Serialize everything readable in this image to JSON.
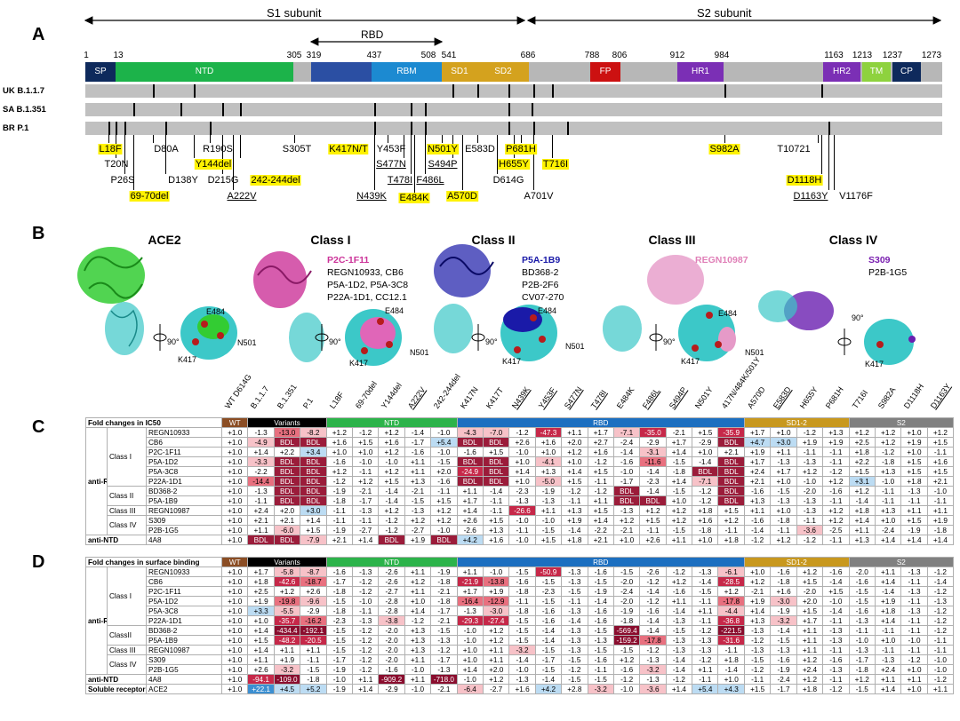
{
  "panel_a": {
    "letter": "A",
    "s1_label": "S1 subunit",
    "s2_label": "S2 subunit",
    "rbd_label": "RBD",
    "positions": [
      "1",
      "13",
      "305",
      "319",
      "437",
      "508",
      "541",
      "686",
      "788",
      "806",
      "912",
      "984",
      "1163",
      "1213",
      "1237",
      "1273"
    ],
    "domains": [
      {
        "label": "SP",
        "color": "#0e2a5c"
      },
      {
        "label": "NTD",
        "color": "#1cb34a"
      },
      {
        "label": "",
        "color": "#2b4fa3"
      },
      {
        "label": "RBM",
        "color": "#1c8ad1"
      },
      {
        "label": "SD1",
        "color": "#d4a21e"
      },
      {
        "label": "SD2",
        "color": "#d4a21e"
      },
      {
        "label": "FP",
        "color": "#cc1111"
      },
      {
        "label": "HR1",
        "color": "#7b2fb5"
      },
      {
        "label": "HR2",
        "color": "#7b2fb5"
      },
      {
        "label": "TM",
        "color": "#8ed23e"
      },
      {
        "label": "CP",
        "color": "#0e2a5c"
      }
    ],
    "strains": [
      "UK B.1.1.7",
      "SA B.1.351",
      "BR P.1"
    ],
    "mutations": [
      "L18F",
      "T20N",
      "P26S",
      "69-70del",
      "D80A",
      "D138Y",
      "Y144del",
      "R190S",
      "D215G",
      "A222V",
      "242-244del",
      "S305T",
      "K417N/T",
      "N439K",
      "Y453F",
      "S477N",
      "T478I",
      "E484K",
      "F486L",
      "N501Y",
      "S494P",
      "A570D",
      "E583D",
      "D614G",
      "H655Y",
      "P681H",
      "A701V",
      "T716I",
      "S982A",
      "T10721",
      "D1118H",
      "D1163Y",
      "V1176F"
    ]
  },
  "panel_b": {
    "letter": "B",
    "classes": [
      "ACE2",
      "Class I",
      "Class II",
      "Class III",
      "Class IV"
    ],
    "class_i_antibodies": [
      "P2C-1F11",
      "REGN10933, CB6",
      "P5A-1D2, P5A-3C8",
      "P22A-1D1, CC12.1"
    ],
    "class_ii_antibodies": [
      "P5A-1B9",
      "BD368-2",
      "P2B-2F6",
      "CV07-270"
    ],
    "class_iii_antibodies": [
      "REGN10987"
    ],
    "class_iv_antibodies": [
      "S309",
      "P2B-1G5"
    ],
    "residues": [
      "E484",
      "N501",
      "K417"
    ],
    "rotation_label": "90°",
    "colors": {
      "ace2": "#33cc33",
      "class_i": "#cc3399",
      "class_ii": "#1a1aa8",
      "class_iii": "#e69ac8",
      "class_iv": "#6a1fb0",
      "rbd": "#3cc8c8"
    }
  },
  "columns": [
    "WT D614G",
    "B.1.1.7",
    "B.1.351",
    "P.1",
    "L18F",
    "69-70del",
    "Y144del",
    "A222V",
    "242-244del",
    "K417N",
    "K417T",
    "N439K",
    "Y453F",
    "S477N",
    "T478I",
    "E484K",
    "F486L",
    "S494P",
    "N501Y",
    "417N/484K/501Y",
    "A570D",
    "E583D",
    "H655Y",
    "P681H",
    "T716I",
    "S982A",
    "D1118H",
    "D1163Y"
  ],
  "panel_c": {
    "letter": "C",
    "title": "Fold changes in IC50",
    "groups": [
      "WT",
      "Variants",
      "NTD",
      "RBD",
      "SD1-2",
      "S2"
    ],
    "row_groups": [
      "anti-RBD",
      "anti-NTD"
    ],
    "classes": [
      "Class I",
      "Class II",
      "Class III",
      "Class IV"
    ],
    "rows": [
      {
        "name": "REGN10933",
        "v": [
          "+1.0",
          "-1.3",
          "-13.0",
          "-8.2",
          "+1.2",
          "-1.2",
          "+1.2",
          "-1.4",
          "-1.0",
          "-4.3",
          "-7.0",
          "-1.2",
          "-47.3",
          "+1.1",
          "+1.7",
          "-7.1",
          "-35.0",
          "-2.1",
          "+1.5",
          "-35.9",
          "+1.7",
          "+1.0",
          "-1.2",
          "+1.3",
          "+1.2",
          "+1.2",
          "+1.0",
          "+1.2"
        ]
      },
      {
        "name": "CB6",
        "v": [
          "+1.0",
          "-4.9",
          "BDL",
          "BDL",
          "+1.6",
          "+1.5",
          "+1.6",
          "-1.7",
          "+5.4",
          "BDL",
          "BDL",
          "+2.6",
          "+1.6",
          "+2.0",
          "+2.7",
          "-2.4",
          "-2.9",
          "+1.7",
          "-2.9",
          "BDL",
          "+4.7",
          "+3.0",
          "+1.9",
          "+1.9",
          "+2.5",
          "+1.2",
          "+1.9",
          "+1.5"
        ]
      },
      {
        "name": "P2C-1F11",
        "v": [
          "+1.0",
          "+1.4",
          "+2.2",
          "+3.4",
          "+1.0",
          "+1.0",
          "+1.2",
          "-1.6",
          "-1.0",
          "-1.6",
          "+1.5",
          "-1.0",
          "+1.0",
          "+1.2",
          "+1.6",
          "-1.4",
          "-3.1",
          "+1.4",
          "+1.0",
          "+2.1",
          "+1.9",
          "+1.1",
          "-1.1",
          "-1.1",
          "+1.8",
          "-1.2",
          "+1.0",
          "-1.1"
        ]
      },
      {
        "name": "P5A-1D2",
        "v": [
          "+1.0",
          "-3.3",
          "BDL",
          "BDL",
          "-1.6",
          "-1.0",
          "-1.0",
          "+1.1",
          "-1.5",
          "BDL",
          "BDL",
          "+1.0",
          "-4.1",
          "+1.0",
          "-1.2",
          "-1.6",
          "-11.6",
          "-1.5",
          "-1.4",
          "BDL",
          "+1.7",
          "-1.3",
          "-1.3",
          "-1.1",
          "+2.2",
          "-1.8",
          "+1.5",
          "+1.6"
        ]
      },
      {
        "name": "P5A-3C8",
        "v": [
          "+1.0",
          "-2.2",
          "BDL",
          "BDL",
          "+1.2",
          "-1.1",
          "+1.2",
          "+1.1",
          "+2.0",
          "-24.9",
          "BDL",
          "+1.4",
          "+1.3",
          "+1.4",
          "+1.5",
          "-1.0",
          "-1.4",
          "-1.8",
          "BDL",
          "BDL",
          "+2.4",
          "+1.7",
          "+1.2",
          "-1.2",
          "+1.5",
          "+1.3",
          "+1.5",
          "+1.5"
        ]
      },
      {
        "name": "P22A-1D1",
        "v": [
          "+1.0",
          "-14.4",
          "BDL",
          "BDL",
          "-1.2",
          "+1.2",
          "+1.5",
          "+1.3",
          "-1.6",
          "BDL",
          "BDL",
          "+1.0",
          "-5.0",
          "+1.5",
          "-1.1",
          "-1.7",
          "-2.3",
          "+1.4",
          "-7.1",
          "BDL",
          "+2.1",
          "+1.0",
          "-1.0",
          "+1.2",
          "+3.1",
          "-1.0",
          "+1.8",
          "+2.1"
        ]
      },
      {
        "name": "BD368-2",
        "v": [
          "+1.0",
          "-1.3",
          "BDL",
          "BDL",
          "-1.9",
          "-2.1",
          "-1.4",
          "-2.1",
          "-1.1",
          "+1.1",
          "-1.4",
          "-2.3",
          "-1.9",
          "-1.2",
          "-1.2",
          "BDL",
          "-1.4",
          "-1.5",
          "-1.2",
          "BDL",
          "-1.6",
          "-1.5",
          "-2.0",
          "-1.6",
          "+1.2",
          "-1.1",
          "-1.3",
          "-1.0"
        ]
      },
      {
        "name": "P5A-1B9",
        "v": [
          "+1.0",
          "-1.1",
          "BDL",
          "BDL",
          "-1.8",
          "-1.7",
          "-1.4",
          "-1.5",
          "+1.5",
          "+1.7",
          "-1.1",
          "-1.3",
          "-1.3",
          "-1.1",
          "+1.1",
          "BDL",
          "BDL",
          "+1.0",
          "-1.2",
          "BDL",
          "+1.3",
          "-1.3",
          "-1.3",
          "-1.1",
          "-1.4",
          "-1.1",
          "-1.1",
          "-1.1"
        ]
      },
      {
        "name": "REGN10987",
        "v": [
          "+1.0",
          "+2.4",
          "+2.0",
          "+3.0",
          "-1.1",
          "-1.3",
          "+1.2",
          "-1.3",
          "+1.2",
          "+1.4",
          "-1.1",
          "-26.6",
          "+1.1",
          "+1.3",
          "+1.5",
          "-1.3",
          "+1.2",
          "+1.2",
          "+1.8",
          "+1.5",
          "+1.1",
          "+1.0",
          "-1.3",
          "+1.2",
          "+1.8",
          "+1.3",
          "+1.1",
          "+1.1"
        ]
      },
      {
        "name": "S309",
        "v": [
          "+1.0",
          "+2.1",
          "+2.1",
          "+1.4",
          "-1.1",
          "-1.1",
          "-1.2",
          "+1.2",
          "+1.2",
          "+2.6",
          "+1.5",
          "-1.0",
          "-1.0",
          "+1.9",
          "+1.4",
          "+1.2",
          "+1.5",
          "+1.2",
          "+1.6",
          "+1.2",
          "-1.6",
          "-1.8",
          "-1.1",
          "+1.2",
          "+1.4",
          "+1.0",
          "+1.5",
          "+1.9"
        ]
      },
      {
        "name": "P2B-1G5",
        "v": [
          "+1.0",
          "+1.1",
          "-6.0",
          "+1.5",
          "-1.9",
          "-2.7",
          "-1.2",
          "-2.7",
          "-1.0",
          "-2.6",
          "+1.3",
          "-1.1",
          "-1.5",
          "-1.4",
          "-2.2",
          "-2.1",
          "-1.1",
          "-1.5",
          "-1.8",
          "-1.1",
          "-1.4",
          "-1.1",
          "-3.6",
          "-2.5",
          "+1.1",
          "-2.4",
          "-1.9",
          "-1.8"
        ]
      },
      {
        "name": "4A8",
        "v": [
          "+1.0",
          "BDL",
          "BDL",
          "-7.9",
          "+2.1",
          "+1.4",
          "BDL",
          "+1.9",
          "BDL",
          "+4.2",
          "+1.6",
          "-1.0",
          "+1.5",
          "+1.8",
          "+2.1",
          "+1.0",
          "+2.6",
          "+1.1",
          "+1.0",
          "+1.8",
          "-1.2",
          "+1.2",
          "-1.2",
          "-1.1",
          "+1.3",
          "+1.4",
          "+1.4",
          "+1.4"
        ]
      }
    ]
  },
  "panel_d": {
    "letter": "D",
    "title": "Fold changes in surface binding",
    "groups": [
      "WT",
      "Variants",
      "NTD",
      "RBD",
      "SD1-2",
      "S2"
    ],
    "row_groups": [
      "anti-RBD",
      "anti-NTD",
      "Soluble receptor"
    ],
    "classes": [
      "Class I",
      "ClassII",
      "Class III",
      "Class IV"
    ],
    "rows": [
      {
        "name": "REGN10933",
        "v": [
          "+1.0",
          "+1.7",
          "-5.8",
          "-8.7",
          "-1.6",
          "-1.3",
          "-2.6",
          "+1.1",
          "-1.9",
          "+1.1",
          "-1.0",
          "-1.5",
          "-50.9",
          "-1.3",
          "-1.6",
          "-1.5",
          "-2.6",
          "-1.2",
          "-1.3",
          "-6.1",
          "+1.0",
          "-1.6",
          "+1.2",
          "-1.6",
          "-2.0",
          "+1.1",
          "-1.3",
          "-1.2"
        ]
      },
      {
        "name": "CB6",
        "v": [
          "+1.0",
          "+1.8",
          "-42.6",
          "-18.7",
          "-1.7",
          "-1.2",
          "-2.6",
          "+1.2",
          "-1.8",
          "-21.9",
          "-13.8",
          "-1.6",
          "-1.5",
          "-1.3",
          "-1.5",
          "-2.0",
          "-1.2",
          "+1.2",
          "-1.4",
          "-28.5",
          "+1.2",
          "-1.8",
          "+1.5",
          "-1.4",
          "-1.6",
          "+1.4",
          "-1.1",
          "-1.4"
        ]
      },
      {
        "name": "P2C-1F11",
        "v": [
          "+1.0",
          "+2.5",
          "+1.2",
          "+2.6",
          "-1.8",
          "-1.2",
          "-2.7",
          "+1.1",
          "-2.1",
          "+1.7",
          "+1.9",
          "-1.8",
          "-2.3",
          "-1.5",
          "-1.9",
          "-2.4",
          "-1.4",
          "-1.6",
          "-1.5",
          "+1.2",
          "-2.1",
          "+1.6",
          "-2.0",
          "+1.5",
          "-1.5",
          "-1.4",
          "-1.3",
          "-1.2"
        ]
      },
      {
        "name": "P5A-1D2",
        "v": [
          "+1.0",
          "+1.9",
          "-19.8",
          "-9.6",
          "-1.5",
          "-1.0",
          "-2.8",
          "+1.0",
          "-1.8",
          "-16.4",
          "-12.9",
          "-1.1",
          "-1.5",
          "-1.1",
          "-1.4",
          "-2.0",
          "-1.2",
          "+1.1",
          "-1.1",
          "-17.8",
          "+1.9",
          "-3.0",
          "+2.0",
          "-1.0",
          "-1.5",
          "+1.9",
          "-1.1",
          "-1.3"
        ]
      },
      {
        "name": "P5A-3C8",
        "v": [
          "+1.0",
          "+3.3",
          "-5.5",
          "-2.9",
          "-1.8",
          "-1.1",
          "-2.8",
          "+1.4",
          "-1.7",
          "-1.3",
          "-3.0",
          "-1.8",
          "-1.6",
          "-1.3",
          "-1.6",
          "-1.9",
          "-1.6",
          "-1.4",
          "+1.1",
          "-4.4",
          "+1.4",
          "-1.9",
          "+1.5",
          "-1.4",
          "-1.6",
          "+1.8",
          "-1.3",
          "-1.2"
        ]
      },
      {
        "name": "P22A-1D1",
        "v": [
          "+1.0",
          "+1.0",
          "-35.7",
          "-16.2",
          "-2.3",
          "-1.3",
          "-3.8",
          "-1.2",
          "-2.1",
          "-29.3",
          "-27.4",
          "-1.5",
          "-1.6",
          "-1.4",
          "-1.6",
          "-1.8",
          "-1.4",
          "-1.3",
          "-1.1",
          "-36.8",
          "+1.3",
          "-3.2",
          "+1.7",
          "-1.1",
          "-1.3",
          "+1.4",
          "-1.1",
          "-1.2"
        ]
      },
      {
        "name": "BD368-2",
        "v": [
          "+1.0",
          "+1.4",
          "-434.4",
          "-192.1",
          "-1.5",
          "-1.2",
          "-2.0",
          "+1.3",
          "-1.5",
          "-1.0",
          "+1.2",
          "-1.5",
          "-1.4",
          "-1.3",
          "-1.5",
          "-569.4",
          "-1.4",
          "-1.5",
          "-1.2",
          "-221.5",
          "-1.3",
          "-1.4",
          "+1.1",
          "-1.3",
          "-1.1",
          "-1.1",
          "-1.1",
          "-1.2"
        ]
      },
      {
        "name": "P5A-1B9",
        "v": [
          "+1.0",
          "+1.5",
          "-48.2",
          "-20.5",
          "-1.5",
          "-1.2",
          "-2.0",
          "+1.3",
          "-1.3",
          "-1.0",
          "+1.2",
          "-1.5",
          "-1.4",
          "-1.3",
          "-1.3",
          "-159.2",
          "-17.8",
          "-1.3",
          "-1.3",
          "-31.6",
          "-1.2",
          "-1.5",
          "+1.1",
          "-1.3",
          "-1.0",
          "+1.0",
          "-1.0",
          "-1.1"
        ]
      },
      {
        "name": "REGN10987",
        "v": [
          "+1.0",
          "+1.4",
          "+1.1",
          "+1.1",
          "-1.5",
          "-1.2",
          "-2.0",
          "+1.3",
          "-1.2",
          "+1.0",
          "+1.1",
          "-3.2",
          "-1.5",
          "-1.3",
          "-1.5",
          "-1.5",
          "-1.2",
          "-1.3",
          "-1.3",
          "-1.1",
          "-1.3",
          "-1.3",
          "+1.1",
          "-1.1",
          "-1.3",
          "-1.1",
          "-1.1",
          "-1.1"
        ]
      },
      {
        "name": "S309",
        "v": [
          "+1.0",
          "+1.1",
          "+1.9",
          "-1.1",
          "-1.7",
          "-1.2",
          "-2.0",
          "+1.1",
          "-1.7",
          "+1.0",
          "+1.1",
          "-1.4",
          "-1.7",
          "-1.5",
          "-1.6",
          "+1.2",
          "-1.3",
          "-1.4",
          "-1.2",
          "+1.8",
          "-1.5",
          "-1.6",
          "+1.2",
          "-1.6",
          "-1.7",
          "-1.3",
          "-1.2",
          "-1.0"
        ]
      },
      {
        "name": "P2B-1G5",
        "v": [
          "+1.0",
          "+2.6",
          "-3.2",
          "-1.5",
          "-1.9",
          "-1.2",
          "-1.6",
          "-1.0",
          "-1.3",
          "+1.4",
          "+2.0",
          "-1.0",
          "-1.5",
          "-1.2",
          "-1.1",
          "-1.6",
          "-3.2",
          "-1.4",
          "+1.1",
          "-1.4",
          "-1.2",
          "-1.9",
          "+2.4",
          "-1.3",
          "-1.8",
          "+2.4",
          "+1.0",
          "-1.0"
        ]
      },
      {
        "name": "4A8",
        "v": [
          "+1.0",
          "-94.1",
          "-109.0",
          "-1.8",
          "-1.0",
          "+1.1",
          "-909.2",
          "+1.1",
          "-718.0",
          "-1.0",
          "+1.2",
          "-1.3",
          "-1.4",
          "-1.5",
          "-1.5",
          "-1.2",
          "-1.3",
          "-1.2",
          "-1.1",
          "+1.0",
          "-1.1",
          "-2.4",
          "+1.2",
          "-1.1",
          "+1.2",
          "+1.1",
          "+1.1",
          "-1.2"
        ]
      },
      {
        "name": "ACE2",
        "v": [
          "+1.0",
          "+22.1",
          "+4.5",
          "+5.2",
          "-1.9",
          "+1.4",
          "-2.9",
          "-1.0",
          "-2.1",
          "-6.4",
          "-2.7",
          "+1.6",
          "+4.2",
          "+2.8",
          "-3.2",
          "-1.0",
          "-3.6",
          "+1.4",
          "+5.4",
          "+4.3",
          "+1.5",
          "-1.7",
          "+1.8",
          "-1.2",
          "-1.5",
          "+1.4",
          "+1.0",
          "+1.1"
        ]
      }
    ]
  }
}
